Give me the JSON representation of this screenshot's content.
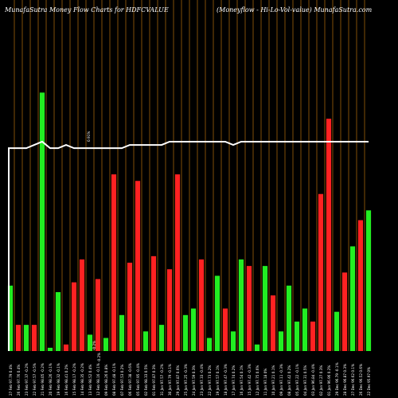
{
  "header": {
    "title": "MunafaSutra  Money Flow  Charts for HDFCVALUE",
    "subtitle": "(Moneyflow  -  Hi-Lo-Vol-value) MunafaSutra.com"
  },
  "colors": {
    "background": "#000000",
    "up": "#22ee22",
    "down": "#ff2222",
    "line": "#ffffff",
    "grid": "#a0620a"
  },
  "chart_data": {
    "type": "bar",
    "title": "MunafaSutra  Money Flow  Charts for HDFCVALUE",
    "subtitle": "(Moneyflow  -  Hi-Lo-Vol-value) MunafaSutra.com",
    "ylim": [
      0,
      100
    ],
    "grid": true,
    "categories": [
      "Tue 27 Feb 2024",
      "Mon 26 Feb 2024",
      "Fri 23 Feb 2024",
      "Thu 22 Feb 2024",
      "Wed 21 Feb 2024",
      "Tue 20 Feb 2024",
      "Mon 19 Feb 2024",
      "Fri 16 Feb 2024",
      "Thu 15 Feb 2024",
      "Wed 14 Feb 2024",
      "Tue 13 Feb 2024",
      "Mon 12 Feb 2024",
      "Fri 09 Feb 2024",
      "Thu 08 Feb 2024",
      "Wed 07 Feb 2024",
      "Tue 06 Feb 2024",
      "Mon 05 Feb 2024",
      "Fri 02 Feb 2024",
      "Thu 01 Feb 2024",
      "Wed 31 Jan 2024",
      "Tue 30 Jan 2024",
      "Mon 29 Jan 2024",
      "Thu 25 Jan 2024",
      "Wed 24 Jan 2024",
      "Tue 23 Jan 2024",
      "Mon 22 Jan 2024",
      "Fri 19 Jan 2024",
      "Thu 18 Jan 2024",
      "Wed 17 Jan 2024",
      "Tue 16 Jan 2024",
      "Mon 15 Jan 2024",
      "Fri 12 Jan 2024",
      "Thu 11 Jan 2024",
      "Wed 10 Jan 2024",
      "Tue 09 Jan 2024",
      "Mon 08 Jan 2024",
      "Fri 05 Jan 2024",
      "Thu 04 Jan 2024",
      "Wed 03 Jan 2024",
      "Tue 02 Jan 2024",
      "Mon 01 Jan 2024",
      "Fri 29 Dec 2023",
      "Thu 28 Dec 2023",
      "Wed 27 Dec 2023",
      "Tue 26 Dec 2023",
      "Fri 22 Dec 2023"
    ],
    "x_labels": [
      "27 Feb 97.79 0.4%",
      "26 Feb 97.76 0.4%",
      "23 Feb 97.37 -0.2%",
      "22 Feb 97.57 -0.5%",
      "21 Feb 98.05 -0.2%",
      "20 Feb 98.26 -0.1%",
      "19 Feb 98.32 -0.1%",
      "16 Feb 98.41 0.2%",
      "15 Feb 98.17 -0.2%",
      "14 Feb 98.35 -0.2%",
      "13 Feb 98.52 0.4%",
      "12 Feb 98.16 -0.1%",
      "09 Feb 98.26 0.8%",
      "08 Feb 97.48 -0.1%",
      "07 Feb 97.53 0.2%",
      "06 Feb 97.38 -0.6%",
      "05 Feb 97.95 -0.4%",
      "02 Feb 98.33 0.5%",
      "01 Feb 97.87 0.3%",
      "31 Jan 97.57 -0.2%",
      "30 Jan 97.79 -0.1%",
      "29 Jan 97.87 0.6%",
      "25 Jan 97.25 -0.3%",
      "24 Jan 97.59 0.3%",
      "23 Jan 97.33 -0.4%",
      "22 Jan 97.73 0.2%",
      "19 Jan 97.57 0.1%",
      "18 Jan 97.47 -0.3%",
      "17 Jan 97.74 0.2%",
      "16 Jan 97.54 0.1%",
      "15 Jan 97.42 -0.3%",
      "12 Jan 97.75 0.6%",
      "11 Jan 97.18 0%",
      "10 Jan 97.21 0.1%",
      "09 Jan 97.11 -0.3%",
      "08 Jan 97.42 0.2%",
      "05 Jan 97.22 -0.1%",
      "04 Jan 97.31 0.5%",
      "03 Jan 96.84 -0.4%",
      "02 Jan 97.27 0.3%",
      "01 Jan 96.96 0.2%",
      "29 Dec 96.79 -0.1%",
      "28 Dec 96.87 0.3%",
      "27 Dec 96.62 0.1%",
      "26 Dec 96.52 0.6%",
      "22 Dec 95.97 0%"
    ],
    "annotations": [
      "0.91%",
      "-0.2%",
      "-0.2%"
    ],
    "series": [
      {
        "type": "bar",
        "values": [
          20,
          8,
          8,
          8,
          79,
          1,
          18,
          2,
          21,
          28,
          5,
          22,
          4,
          54,
          11,
          27,
          52,
          6,
          29,
          8,
          25,
          54,
          11,
          13,
          28,
          4,
          23,
          13,
          6,
          28,
          26,
          2,
          26,
          17,
          6,
          20,
          9,
          13,
          9,
          48,
          71,
          12,
          24,
          32,
          40,
          43
        ],
        "colors": [
          "up",
          "down",
          "up",
          "down",
          "up",
          "up",
          "up",
          "down",
          "down",
          "down",
          "up",
          "down",
          "up",
          "down",
          "up",
          "down",
          "down",
          "up",
          "down",
          "up",
          "down",
          "down",
          "up",
          "up",
          "down",
          "up",
          "up",
          "down",
          "up",
          "up",
          "down",
          "up",
          "up",
          "down",
          "up",
          "up",
          "up",
          "up",
          "down",
          "down",
          "down",
          "up",
          "down",
          "up",
          "down",
          "up"
        ]
      },
      {
        "type": "line",
        "values": [
          62,
          62,
          62,
          63,
          64,
          62,
          62,
          63,
          62,
          62,
          62,
          62,
          62,
          62,
          62,
          63,
          63,
          63,
          63,
          63,
          64,
          64,
          64,
          64,
          64,
          64,
          64,
          64,
          63,
          64,
          64,
          64,
          64,
          64,
          64,
          64,
          64,
          64,
          64,
          64,
          64,
          64,
          64,
          64,
          64,
          64
        ]
      }
    ]
  }
}
